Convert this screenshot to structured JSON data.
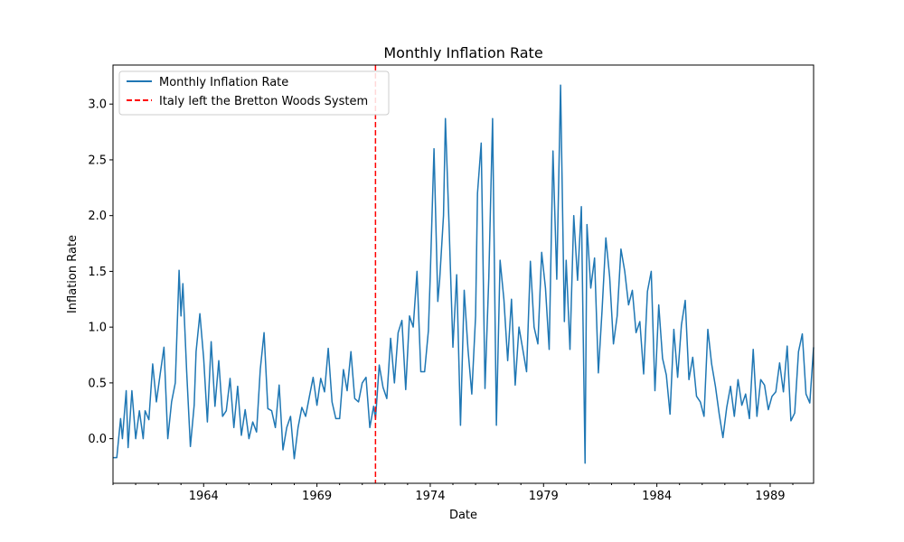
{
  "chart_data": {
    "type": "line",
    "title": "Monthly Inflation Rate",
    "xlabel": "Date",
    "ylabel": "Inflation Rate",
    "x_axis": {
      "type": "date",
      "range": [
        "1960-01",
        "1990-12"
      ],
      "tick_years": [
        1964,
        1969,
        1974,
        1979,
        1984,
        1989
      ],
      "tick_labels": [
        "1964",
        "1969",
        "1974",
        "1979",
        "1984",
        "1989"
      ]
    },
    "y_axis": {
      "range": [
        -0.4,
        3.35
      ],
      "ticks": [
        0.0,
        0.5,
        1.0,
        1.5,
        2.0,
        2.5,
        3.0
      ],
      "tick_labels": [
        "0.0",
        "0.5",
        "1.0",
        "1.5",
        "2.0",
        "2.5",
        "3.0"
      ]
    },
    "grid": false,
    "legend_position": "top-left",
    "legend": [
      {
        "label": "Monthly Inflation Rate",
        "style": "solid",
        "color": "#1f77b4"
      },
      {
        "label": "Italy left the Bretton Woods System",
        "style": "dashed",
        "color": "#ff0000"
      }
    ],
    "vline": {
      "date": "1971-08",
      "label": "Italy left the Bretton Woods System",
      "color": "#ff0000"
    },
    "series": [
      {
        "name": "Monthly Inflation Rate",
        "color": "#1f77b4",
        "x": [
          "1960-01",
          "1960-03",
          "1960-05",
          "1960-06",
          "1960-08",
          "1960-09",
          "1960-11",
          "1961-01",
          "1961-03",
          "1961-05",
          "1961-06",
          "1961-08",
          "1961-10",
          "1961-12",
          "1962-02",
          "1962-04",
          "1962-06",
          "1962-08",
          "1962-10",
          "1962-12",
          "1963-01",
          "1963-02",
          "1963-04",
          "1963-06",
          "1963-08",
          "1963-09",
          "1963-11",
          "1964-01",
          "1964-03",
          "1964-05",
          "1964-07",
          "1964-09",
          "1964-11",
          "1965-01",
          "1965-03",
          "1965-05",
          "1965-07",
          "1965-09",
          "1965-11",
          "1966-01",
          "1966-03",
          "1966-05",
          "1966-07",
          "1966-09",
          "1966-11",
          "1967-01",
          "1967-03",
          "1967-05",
          "1967-07",
          "1967-09",
          "1967-11",
          "1968-01",
          "1968-03",
          "1968-05",
          "1968-07",
          "1968-09",
          "1968-11",
          "1969-01",
          "1969-03",
          "1969-05",
          "1969-07",
          "1969-09",
          "1969-11",
          "1970-01",
          "1970-03",
          "1970-05",
          "1970-07",
          "1970-09",
          "1970-11",
          "1971-01",
          "1971-03",
          "1971-05",
          "1971-07",
          "1971-08",
          "1971-10",
          "1971-12",
          "1972-02",
          "1972-04",
          "1972-06",
          "1972-08",
          "1972-10",
          "1972-12",
          "1973-02",
          "1973-04",
          "1973-06",
          "1973-08",
          "1973-10",
          "1973-12",
          "1974-01",
          "1974-03",
          "1974-05",
          "1974-06",
          "1974-08",
          "1974-09",
          "1974-11",
          "1975-01",
          "1975-03",
          "1975-05",
          "1975-07",
          "1975-09",
          "1975-11",
          "1976-01",
          "1976-02",
          "1976-04",
          "1976-06",
          "1976-08",
          "1976-10",
          "1976-12",
          "1977-02",
          "1977-04",
          "1977-06",
          "1977-08",
          "1977-10",
          "1977-12",
          "1978-02",
          "1978-04",
          "1978-06",
          "1978-08",
          "1978-10",
          "1978-12",
          "1979-02",
          "1979-04",
          "1979-06",
          "1979-08",
          "1979-10",
          "1979-12",
          "1980-01",
          "1980-03",
          "1980-05",
          "1980-07",
          "1980-09",
          "1980-11",
          "1980-12",
          "1981-02",
          "1981-04",
          "1981-06",
          "1981-08",
          "1981-10",
          "1981-12",
          "1982-02",
          "1982-04",
          "1982-06",
          "1982-08",
          "1982-10",
          "1982-12",
          "1983-02",
          "1983-04",
          "1983-06",
          "1983-08",
          "1983-10",
          "1983-12",
          "1984-02",
          "1984-04",
          "1984-06",
          "1984-08",
          "1984-10",
          "1984-12",
          "1985-02",
          "1985-04",
          "1985-06",
          "1985-08",
          "1985-10",
          "1985-12",
          "1986-02",
          "1986-04",
          "1986-06",
          "1986-08",
          "1986-10",
          "1986-12",
          "1987-02",
          "1987-04",
          "1987-06",
          "1987-08",
          "1987-10",
          "1987-12",
          "1988-02",
          "1988-04",
          "1988-06",
          "1988-08",
          "1988-10",
          "1988-12",
          "1989-02",
          "1989-04",
          "1989-06",
          "1989-08",
          "1989-10",
          "1989-12",
          "1990-02",
          "1990-04",
          "1990-06",
          "1990-08",
          "1990-10",
          "1990-12"
        ],
        "y": [
          -0.17,
          -0.17,
          0.18,
          0.0,
          0.43,
          -0.08,
          0.43,
          0.0,
          0.25,
          0.0,
          0.25,
          0.17,
          0.67,
          0.33,
          0.58,
          0.82,
          0.0,
          0.33,
          0.5,
          1.51,
          1.1,
          1.39,
          0.6,
          -0.07,
          0.3,
          0.78,
          1.12,
          0.72,
          0.15,
          0.87,
          0.29,
          0.7,
          0.2,
          0.25,
          0.54,
          0.1,
          0.47,
          0.03,
          0.26,
          0.0,
          0.15,
          0.06,
          0.62,
          0.95,
          0.27,
          0.25,
          0.1,
          0.48,
          -0.1,
          0.1,
          0.2,
          -0.18,
          0.1,
          0.28,
          0.2,
          0.38,
          0.55,
          0.3,
          0.54,
          0.42,
          0.81,
          0.33,
          0.18,
          0.18,
          0.62,
          0.43,
          0.78,
          0.36,
          0.33,
          0.5,
          0.55,
          0.1,
          0.29,
          0.18,
          0.66,
          0.46,
          0.36,
          0.9,
          0.5,
          0.95,
          1.06,
          0.44,
          1.1,
          1.0,
          1.5,
          0.6,
          0.6,
          0.97,
          1.45,
          2.6,
          1.23,
          1.43,
          2.0,
          2.87,
          1.9,
          0.82,
          1.47,
          0.12,
          1.33,
          0.8,
          0.4,
          1.1,
          2.2,
          2.65,
          0.45,
          1.44,
          2.87,
          0.12,
          1.6,
          1.25,
          0.7,
          1.25,
          0.48,
          1.0,
          0.8,
          0.6,
          1.59,
          1.0,
          0.85,
          1.67,
          1.35,
          0.8,
          2.58,
          1.43,
          3.17,
          1.05,
          1.6,
          0.8,
          2.0,
          1.42,
          2.08,
          -0.22,
          1.92,
          1.35,
          1.62,
          0.59,
          1.15,
          1.8,
          1.45,
          0.85,
          1.1,
          1.7,
          1.5,
          1.2,
          1.33,
          0.95,
          1.05,
          0.58,
          1.32,
          1.5,
          0.43,
          1.2,
          0.72,
          0.57,
          0.22,
          0.98,
          0.55,
          1.02,
          1.24,
          0.53,
          0.73,
          0.38,
          0.33,
          0.2,
          0.98,
          0.67,
          0.47,
          0.22,
          0.01,
          0.28,
          0.47,
          0.2,
          0.53,
          0.3,
          0.4,
          0.18,
          0.8,
          0.2,
          0.53,
          0.48,
          0.26,
          0.38,
          0.42,
          0.68,
          0.42,
          0.83,
          0.16,
          0.23,
          0.78,
          0.94,
          0.4,
          0.32,
          0.82
        ]
      }
    ]
  }
}
